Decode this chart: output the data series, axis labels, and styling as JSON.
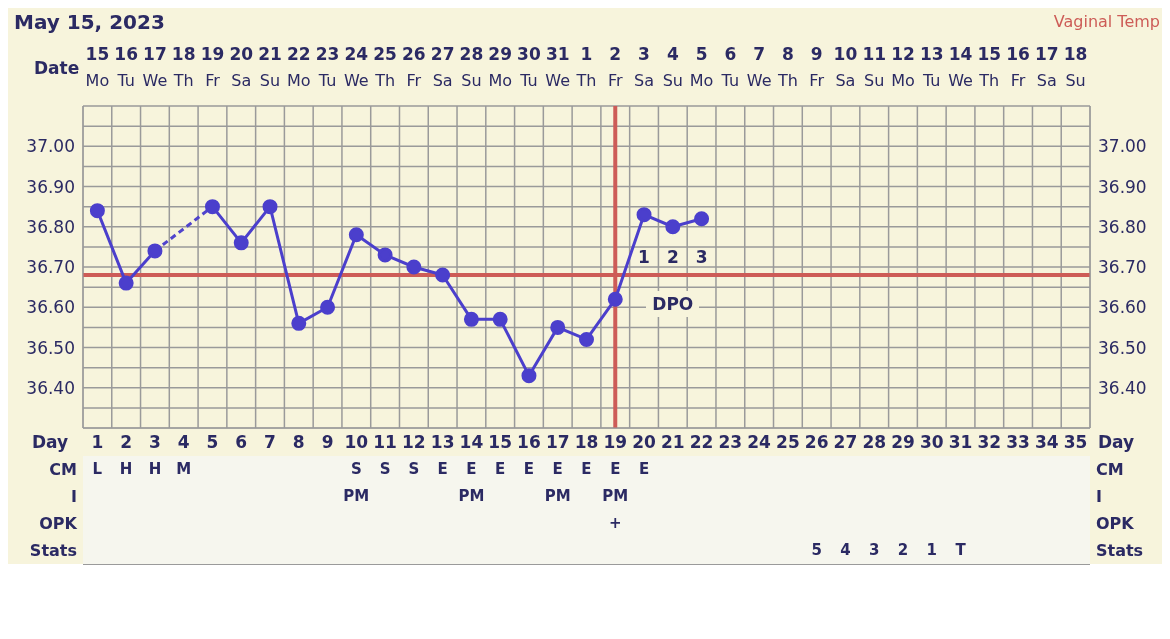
{
  "chart_data": {
    "type": "line",
    "title": "May 15, 2023",
    "subtitle": "Vaginal Temp",
    "xlabel": "Date",
    "x2label": "Day",
    "categories": [
      "15 Mo",
      "16 Tu",
      "17 We",
      "18 Th",
      "19 Fr",
      "20 Sa",
      "21 Su",
      "22 Mo",
      "23 Tu",
      "24 We",
      "25 Th",
      "26 Fr",
      "27 Sa",
      "28 Su",
      "29 Mo",
      "30 Tu",
      "31 We",
      "1 Th",
      "2 Fr",
      "3 Sa",
      "4 Su",
      "5 Mo",
      "6 Tu",
      "7 We",
      "8 Th",
      "9 Fr",
      "10 Sa",
      "11 Su",
      "12 Mo",
      "13 Tu",
      "14 We",
      "15 Th",
      "16 Fr",
      "17 Sa",
      "18 Su"
    ],
    "series": [
      {
        "color": "#4b3fcc",
        "line_style": "solid",
        "marker": "circle",
        "values": [
          36.84,
          36.66,
          36.74,
          null,
          36.85,
          36.76,
          36.85,
          36.56,
          36.6,
          36.78,
          36.73,
          36.7,
          36.68,
          36.57,
          36.57,
          36.43,
          36.55,
          36.52,
          36.62,
          36.83,
          36.8,
          36.82,
          null,
          null,
          null,
          null,
          null,
          null,
          null,
          null,
          null,
          null,
          null,
          null,
          null
        ]
      },
      {
        "color": "#5044cc",
        "line_style": "dashed",
        "values": [
          null,
          null,
          36.74,
          null,
          36.85,
          null,
          null,
          null,
          null,
          null,
          null,
          null,
          null,
          null,
          null,
          null,
          null,
          null,
          null,
          null,
          null,
          null,
          null,
          null,
          null,
          null,
          null,
          null,
          null,
          null,
          null,
          null,
          null,
          null,
          null
        ]
      },
      {
        "type": "scatter",
        "name": "DPO",
        "color": "#2b2a63",
        "values": [
          null,
          null,
          null,
          null,
          null,
          null,
          null,
          null,
          null,
          null,
          null,
          null,
          null,
          null,
          null,
          null,
          null,
          null,
          null,
          null,
          null,
          null,
          null,
          null,
          null,
          null,
          null,
          null,
          null,
          null,
          null,
          null,
          null,
          null,
          null
        ],
        "value_labels": [
          null,
          null,
          null,
          null,
          null,
          null,
          null,
          null,
          null,
          null,
          null,
          null,
          null,
          null,
          null,
          null,
          null,
          null,
          null,
          "1",
          "2",
          "3",
          null,
          null,
          null,
          null,
          null,
          null,
          null,
          null,
          null,
          null,
          null,
          null,
          null
        ]
      },
      {
        "type": "scatter",
        "name": "CM",
        "color": "#2b2a63",
        "values": [
          null,
          null,
          null,
          null,
          null,
          null,
          null,
          null,
          null,
          null,
          null,
          null,
          null,
          null,
          null,
          null,
          null,
          null,
          null,
          null,
          null,
          null,
          null,
          null,
          null,
          null,
          null,
          null,
          null,
          null,
          null,
          null,
          null,
          null,
          null
        ],
        "value_labels": [
          "L",
          "H",
          "H",
          "M",
          null,
          null,
          null,
          null,
          null,
          "S",
          "S",
          "S",
          "E",
          "E",
          "E",
          "E",
          "E",
          "E",
          "E",
          "E",
          null,
          null,
          null,
          null,
          null,
          null,
          null,
          null,
          null,
          null,
          null,
          null,
          null,
          null,
          null
        ]
      },
      {
        "type": "scatter",
        "name": "I",
        "color": "#2b2a63",
        "values": [
          null,
          null,
          null,
          null,
          null,
          null,
          null,
          null,
          null,
          null,
          null,
          null,
          null,
          null,
          null,
          null,
          null,
          null,
          null,
          null,
          null,
          null,
          null,
          null,
          null,
          null,
          null,
          null,
          null,
          null,
          null,
          null,
          null,
          null,
          null
        ],
        "value_labels": [
          null,
          null,
          null,
          null,
          null,
          null,
          null,
          null,
          null,
          "PM",
          null,
          null,
          null,
          "PM",
          null,
          null,
          "PM",
          null,
          "PM",
          null,
          null,
          null,
          null,
          null,
          null,
          null,
          null,
          null,
          null,
          null,
          null,
          null,
          null,
          null,
          null
        ]
      },
      {
        "type": "scatter",
        "name": "OPK",
        "color": "#2b2a63",
        "values": [
          null,
          null,
          null,
          null,
          null,
          null,
          null,
          null,
          null,
          null,
          null,
          null,
          null,
          null,
          null,
          null,
          null,
          null,
          null,
          null,
          null,
          null,
          null,
          null,
          null,
          null,
          null,
          null,
          null,
          null,
          null,
          null,
          null,
          null,
          null
        ],
        "value_labels": [
          null,
          null,
          null,
          null,
          null,
          null,
          null,
          null,
          null,
          null,
          null,
          null,
          null,
          null,
          null,
          null,
          null,
          null,
          "+",
          null,
          null,
          null,
          null,
          null,
          null,
          null,
          null,
          null,
          null,
          null,
          null,
          null,
          null,
          null,
          null
        ]
      },
      {
        "type": "scatter",
        "name": "Stats",
        "color": "#2b2a63",
        "values": [
          null,
          null,
          null,
          null,
          null,
          null,
          null,
          null,
          null,
          null,
          null,
          null,
          null,
          null,
          null,
          null,
          null,
          null,
          null,
          null,
          null,
          null,
          null,
          null,
          null,
          null,
          null,
          null,
          null,
          null,
          null,
          null,
          null,
          null,
          null
        ],
        "value_labels": [
          null,
          null,
          null,
          null,
          null,
          null,
          null,
          null,
          null,
          null,
          null,
          null,
          null,
          null,
          null,
          null,
          null,
          null,
          null,
          null,
          null,
          null,
          null,
          null,
          null,
          "5",
          "4",
          "3",
          "2",
          "1",
          "T",
          null,
          null,
          null,
          null
        ]
      }
    ],
    "ylim": [
      36.3,
      37.1
    ],
    "yticks": [
      {
        "value": 36.35,
        "label": null
      },
      {
        "value": 36.4,
        "label": "36.40"
      },
      {
        "value": 36.45,
        "label": null
      },
      {
        "value": 36.5,
        "label": "36.50"
      },
      {
        "value": 36.55,
        "label": null
      },
      {
        "value": 36.6,
        "label": "36.60"
      },
      {
        "value": 36.65,
        "label": null
      },
      {
        "value": 36.7,
        "label": "36.70"
      },
      {
        "value": 36.75,
        "label": null
      },
      {
        "value": 36.8,
        "label": "36.80"
      },
      {
        "value": 36.85,
        "label": null
      },
      {
        "value": 36.9,
        "label": "36.90"
      },
      {
        "value": 36.95,
        "label": null
      },
      {
        "value": 37.0,
        "label": "37.00"
      },
      {
        "value": 37.05,
        "label": null
      }
    ],
    "y2lim": [
      36.3,
      37.1
    ],
    "y2ticks": [
      {
        "value": 36.35,
        "label": null
      },
      {
        "value": 36.4,
        "label": "36.40"
      },
      {
        "value": 36.45,
        "label": null
      },
      {
        "value": 36.5,
        "label": "36.50"
      },
      {
        "value": 36.55,
        "label": null
      },
      {
        "value": 36.6,
        "label": "36.60"
      },
      {
        "value": 36.65,
        "label": null
      },
      {
        "value": 36.7,
        "label": "36.70"
      },
      {
        "value": 36.75,
        "label": null
      },
      {
        "value": 36.8,
        "label": "36.80"
      },
      {
        "value": 36.85,
        "label": null
      },
      {
        "value": 36.9,
        "label": "36.90"
      },
      {
        "value": 36.95,
        "label": null
      },
      {
        "value": 37.0,
        "label": "37.00"
      },
      {
        "value": 37.05,
        "label": null
      }
    ],
    "x2lim": [
      0.5,
      35.5
    ],
    "x2ticks": [
      1,
      2,
      3,
      4,
      5,
      6,
      7,
      8,
      9,
      10,
      11,
      12,
      13,
      14,
      15,
      16,
      17,
      18,
      19,
      20,
      21,
      22,
      23,
      24,
      25,
      26,
      27,
      28,
      29,
      30,
      31,
      32,
      33,
      34,
      35
    ],
    "grid": true,
    "ref_lines": [
      {
        "axis": "y",
        "value": 36.68,
        "color": "#cd5c57"
      },
      {
        "axis": "x",
        "value": "2 Fr",
        "color": "#cd5c57"
      }
    ]
  }
}
